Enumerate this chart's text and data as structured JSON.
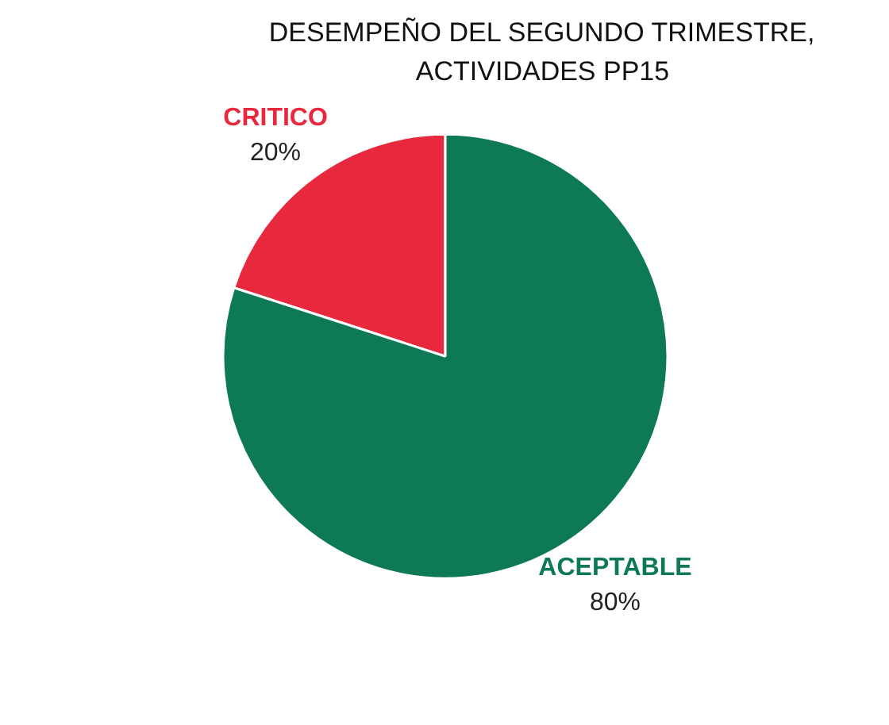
{
  "chart_data": {
    "type": "pie",
    "title": "DESEMPEÑO DEL SEGUNDO TRIMESTRE, ACTIVIDADES PP15",
    "categories": [
      "CRITICO",
      "ACEPTABLE"
    ],
    "values": [
      20,
      80
    ],
    "colors": [
      "#e8283c",
      "#0e7a55"
    ],
    "value_labels": [
      "20%",
      "80%"
    ]
  }
}
